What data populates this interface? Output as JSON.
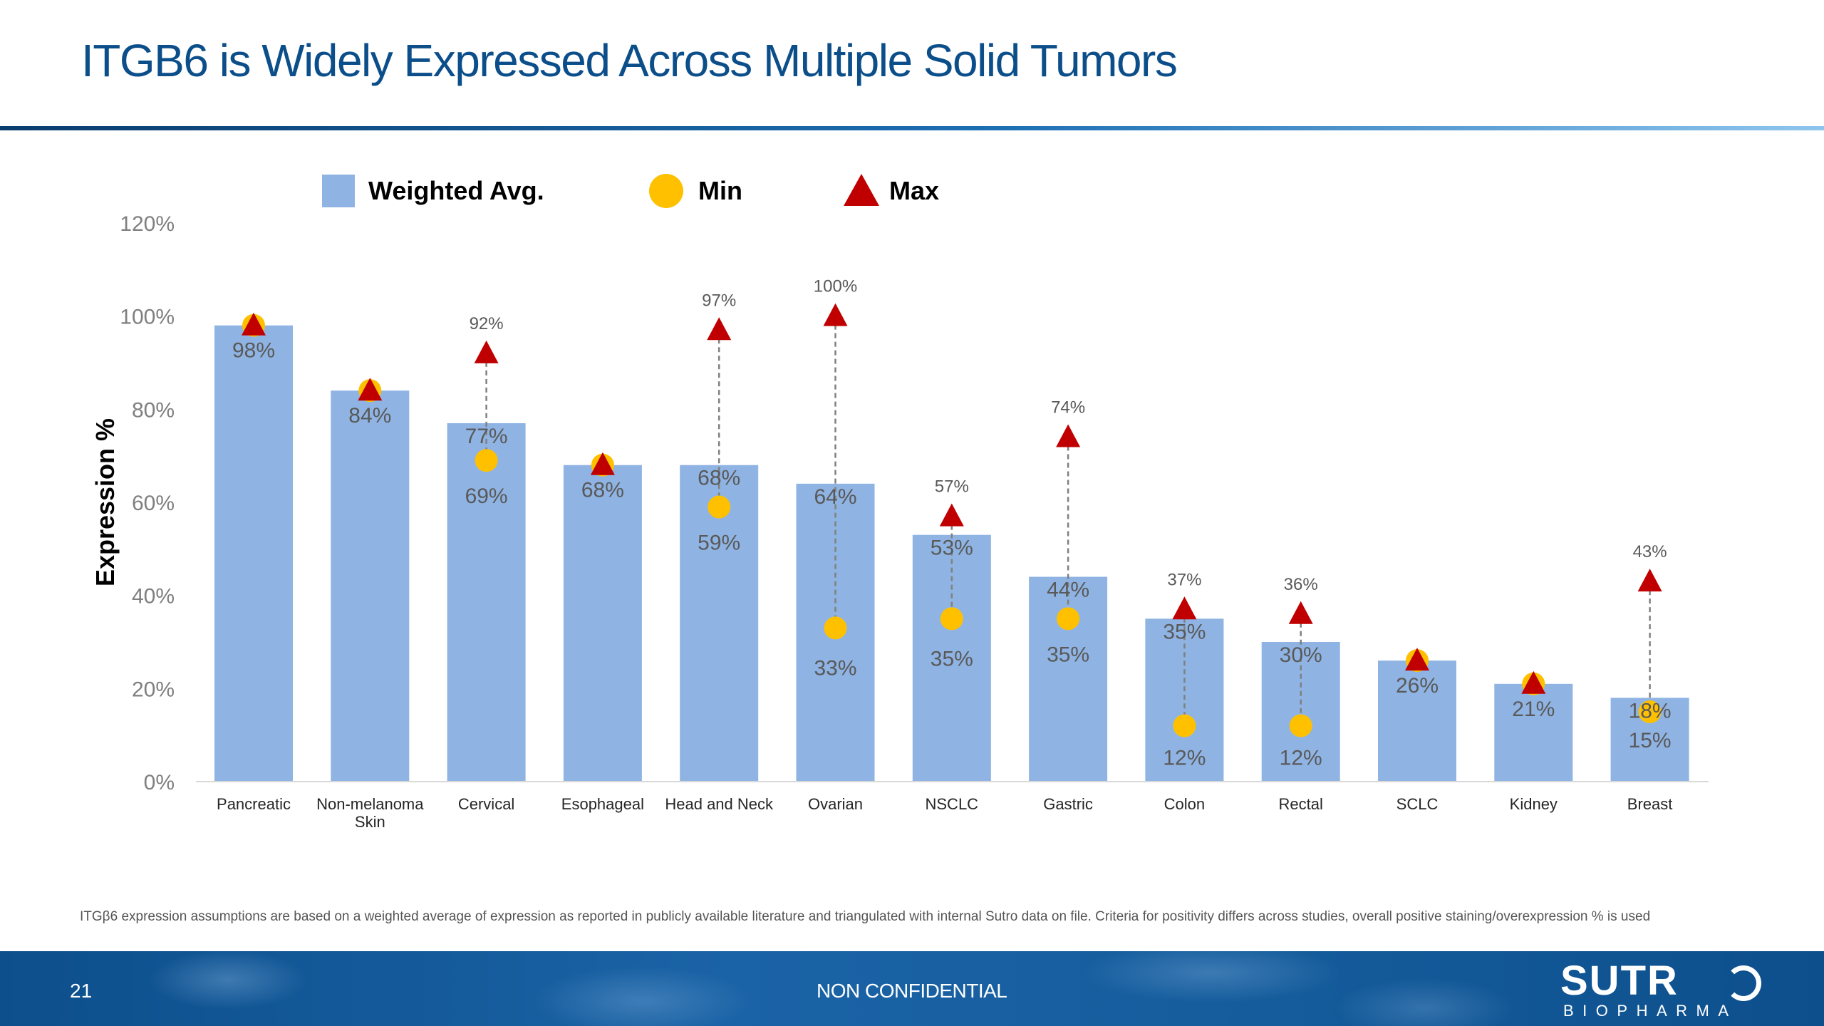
{
  "slide": {
    "title": "ITGB6 is Widely Expressed Across Multiple Solid Tumors",
    "footnote": "ITGβ6 expression assumptions are based on a weighted average of expression as reported in publicly available literature and triangulated with internal Sutro data on file. Criteria for positivity differs across studies, overall positive staining/overexpression % is used",
    "page_number": "21",
    "confidentiality": "NON CONFIDENTIAL",
    "logo_main": "SUTR",
    "logo_sub": "BIOPHARMA"
  },
  "colors": {
    "title": "#0b4e8a",
    "bar": "#8fb4e3",
    "min_marker": "#ffc000",
    "max_marker": "#c00000",
    "footer": "#155c9c"
  },
  "chart_data": {
    "type": "bar",
    "title": "",
    "xlabel": "",
    "ylabel": "Expression %",
    "ylim": [
      0,
      120
    ],
    "yticks": [
      "0%",
      "20%",
      "40%",
      "60%",
      "80%",
      "100%",
      "120%"
    ],
    "grid": false,
    "legend": {
      "placement": "top",
      "entries": [
        {
          "label": "Weighted Avg.",
          "marker": "square",
          "color": "#8fb4e3"
        },
        {
          "label": "Min",
          "marker": "circle",
          "color": "#ffc000"
        },
        {
          "label": "Max",
          "marker": "triangle",
          "color": "#c00000"
        }
      ]
    },
    "categories": [
      [
        "Pancreatic"
      ],
      [
        "Non-melanoma",
        "Skin"
      ],
      [
        "Cervical"
      ],
      [
        "Esophageal"
      ],
      [
        "Head and Neck"
      ],
      [
        "Ovarian"
      ],
      [
        "NSCLC"
      ],
      [
        "Gastric"
      ],
      [
        "Colon"
      ],
      [
        "Rectal"
      ],
      [
        "SCLC"
      ],
      [
        "Kidney"
      ],
      [
        "Breast"
      ]
    ],
    "series": [
      {
        "name": "Weighted Avg.",
        "values": [
          98,
          84,
          77,
          68,
          68,
          64,
          53,
          44,
          35,
          30,
          26,
          21,
          18
        ],
        "labels": [
          "98%",
          "84%",
          "77%",
          "68%",
          "68%",
          "64%",
          "53%",
          "44%",
          "35%",
          "30%",
          "26%",
          "21%",
          "18%"
        ]
      },
      {
        "name": "Min",
        "values": [
          98,
          84,
          69,
          68,
          59,
          33,
          35,
          35,
          12,
          12,
          26,
          21,
          15
        ],
        "labels": [
          "",
          "",
          "69%",
          "",
          "59%",
          "33%",
          "35%",
          "35%",
          "12%",
          "12%",
          "",
          "",
          "15%"
        ]
      },
      {
        "name": "Max",
        "values": [
          98,
          84,
          92,
          68,
          97,
          100,
          57,
          74,
          37,
          36,
          26,
          21,
          43
        ],
        "labels": [
          "",
          "",
          "92%",
          "",
          "97%",
          "100%",
          "57%",
          "74%",
          "37%",
          "36%",
          "",
          "",
          "43%"
        ]
      }
    ]
  }
}
